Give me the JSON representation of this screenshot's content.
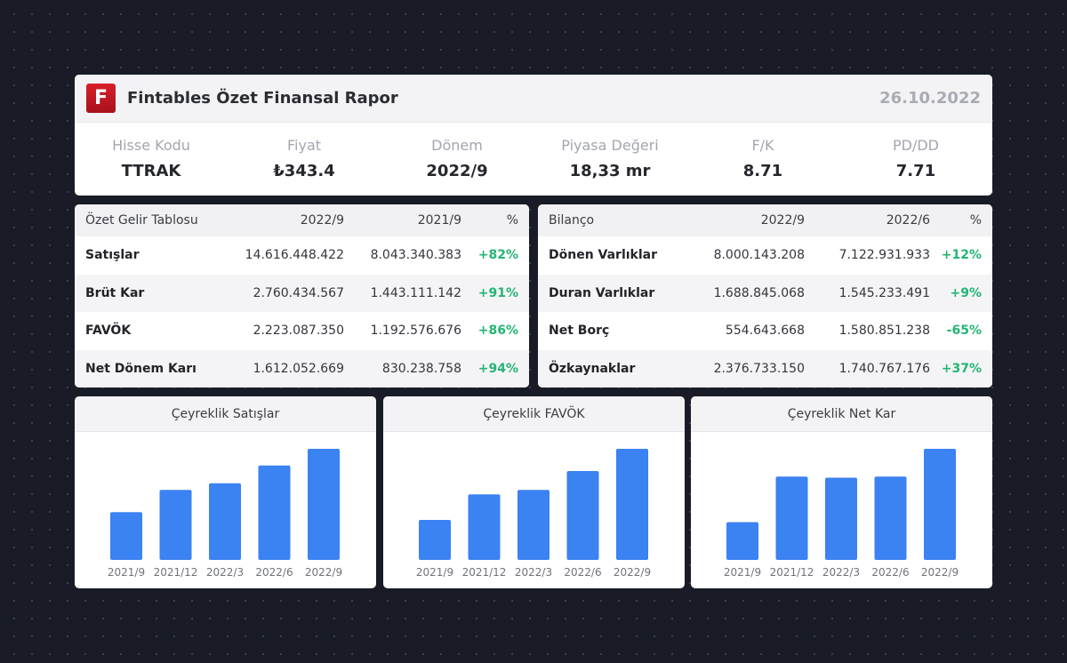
{
  "header": {
    "logo_letter": "F",
    "title": "Fintables Özet Finansal Rapor",
    "date": "26.10.2022",
    "brand_color": "#c8161f"
  },
  "metrics": [
    {
      "label": "Hisse Kodu",
      "value": "TTRAK"
    },
    {
      "label": "Fiyat",
      "value": "₺343.4"
    },
    {
      "label": "Dönem",
      "value": "2022/9"
    },
    {
      "label": "Piyasa Değeri",
      "value": "18,33 mr"
    },
    {
      "label": "F/K",
      "value": "8.71"
    },
    {
      "label": "PD/DD",
      "value": "7.71"
    }
  ],
  "income_table": {
    "headers": [
      "Özet Gelir Tablosu",
      "2022/9",
      "2021/9",
      "%"
    ],
    "rows": [
      {
        "label": "Satışlar",
        "v1": "14.616.448.422",
        "v2": "8.043.340.383",
        "pct": "+82%"
      },
      {
        "label": "Brüt Kar",
        "v1": "2.760.434.567",
        "v2": "1.443.111.142",
        "pct": "+91%"
      },
      {
        "label": "FAVÖK",
        "v1": "2.223.087.350",
        "v2": "1.192.576.676",
        "pct": "+86%"
      },
      {
        "label": "Net Dönem Karı",
        "v1": "1.612.052.669",
        "v2": "830.238.758",
        "pct": "+94%"
      }
    ]
  },
  "balance_table": {
    "headers": [
      "Bilanço",
      "2022/9",
      "2022/6",
      "%"
    ],
    "rows": [
      {
        "label": "Dönen Varlıklar",
        "v1": "8.000.143.208",
        "v2": "7.122.931.933",
        "pct": "+12%"
      },
      {
        "label": "Duran Varlıklar",
        "v1": "1.688.845.068",
        "v2": "1.545.233.491",
        "pct": "+9%"
      },
      {
        "label": "Net Borç",
        "v1": "554.643.668",
        "v2": "1.580.851.238",
        "pct": "-65%"
      },
      {
        "label": "Özkaynaklar",
        "v1": "2.376.733.150",
        "v2": "1.740.767.176",
        "pct": "+37%"
      }
    ]
  },
  "positive_color": "#22b573",
  "bar_color": "#3b82f2",
  "chart_data": [
    {
      "type": "bar",
      "title": "Çeyreklik Satışlar",
      "categories": [
        "2021/9",
        "2021/12",
        "2022/3",
        "2022/6",
        "2022/9"
      ],
      "values": [
        43,
        63,
        69,
        85,
        100
      ],
      "ylim": [
        0,
        100
      ],
      "grid": false
    },
    {
      "type": "bar",
      "title": "Çeyreklik FAVÖK",
      "categories": [
        "2021/9",
        "2021/12",
        "2022/3",
        "2022/6",
        "2022/9"
      ],
      "values": [
        36,
        59,
        63,
        80,
        100
      ],
      "ylim": [
        0,
        100
      ],
      "grid": false
    },
    {
      "type": "bar",
      "title": "Çeyreklik Net Kar",
      "categories": [
        "2021/9",
        "2021/12",
        "2022/3",
        "2022/6",
        "2022/9"
      ],
      "values": [
        34,
        75,
        74,
        75,
        100
      ],
      "ylim": [
        0,
        100
      ],
      "grid": false
    }
  ]
}
